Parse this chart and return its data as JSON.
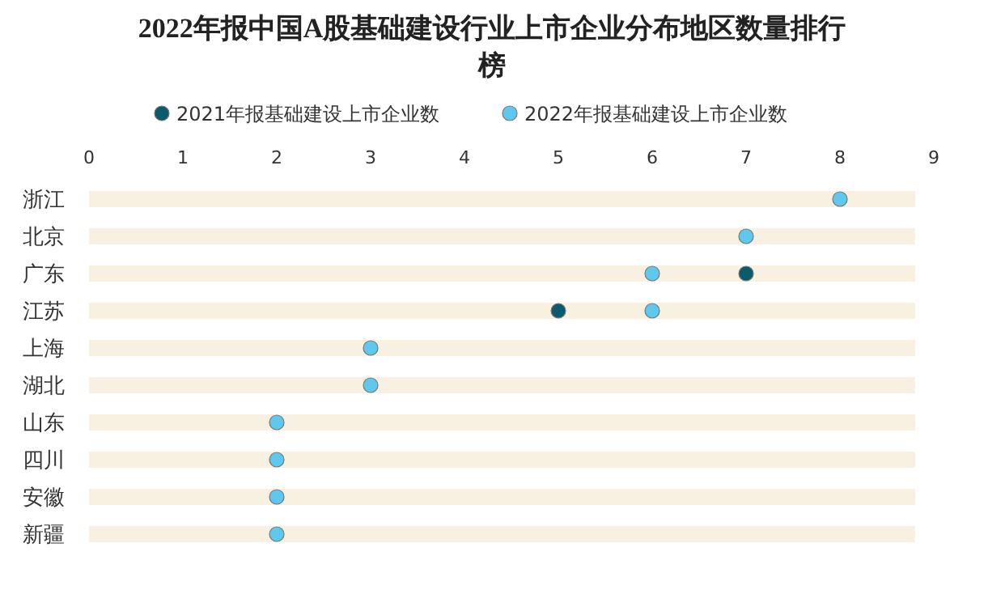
{
  "chart_data": {
    "type": "scatter",
    "orientation": "horizontal",
    "title": "2022年报中国A股基础建设行业上市企业分布地区数量排行榜",
    "categories": [
      "浙江",
      "北京",
      "广东",
      "江苏",
      "上海",
      "湖北",
      "山东",
      "四川",
      "安徽",
      "新疆"
    ],
    "series": [
      {
        "type": "bar",
        "color": "#f8f0e0",
        "values": [
          8.8,
          8.8,
          8.8,
          8.8,
          8.8,
          8.8,
          8.8,
          8.8,
          8.8,
          8.8
        ]
      },
      {
        "name": "2021年报基础建设上市企业数",
        "color": "#0b5a6e",
        "values": [
          null,
          null,
          7,
          5,
          null,
          null,
          null,
          null,
          null,
          null
        ]
      },
      {
        "name": "2022年报基础建设上市企业数",
        "color": "#5ec8ee",
        "values": [
          8,
          7,
          6,
          6,
          3,
          3,
          2,
          2,
          2,
          2
        ]
      }
    ],
    "xlim": [
      0,
      9
    ],
    "xticks": [
      0,
      1,
      2,
      3,
      4,
      5,
      6,
      7,
      8,
      9
    ],
    "legend": "top",
    "marker": "circle"
  }
}
